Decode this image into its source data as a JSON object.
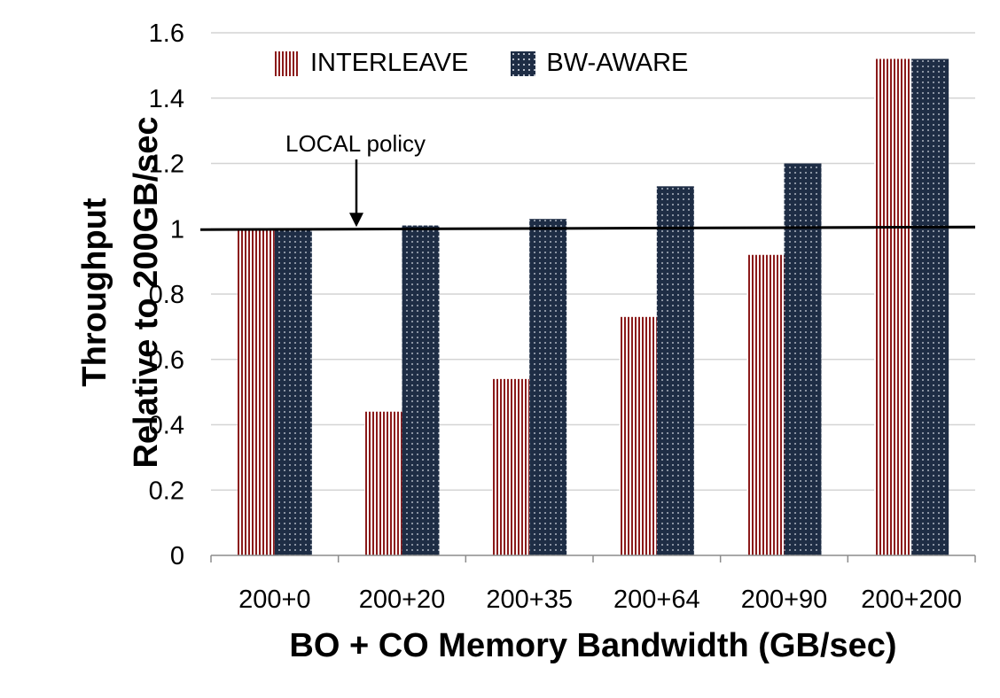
{
  "chart_data": {
    "type": "bar",
    "categories": [
      "200+0",
      "200+20",
      "200+35",
      "200+64",
      "200+90",
      "200+200"
    ],
    "series": [
      {
        "name": "INTERLEAVE",
        "values": [
          1.0,
          0.44,
          0.54,
          0.73,
          0.92,
          1.52
        ],
        "color": "#8b1a1a",
        "pattern": "vertical-stripes"
      },
      {
        "name": "BW-AWARE",
        "values": [
          1.0,
          1.01,
          1.03,
          1.13,
          1.2,
          1.52
        ],
        "color": "#1e2d45",
        "pattern": "dots"
      }
    ],
    "title": "",
    "xlabel": "BO + CO Memory Bandwidth (GB/sec)",
    "ylabel": [
      "Throughput",
      "Relative to 200GB/sec"
    ],
    "ylim": [
      0,
      1.6
    ],
    "yticks": [
      "0",
      "0.2",
      "0.4",
      "0.6",
      "0.8",
      "1",
      "1.2",
      "1.4",
      "1.6"
    ],
    "grid": "horizontal",
    "legend_position": "top",
    "reference_line": {
      "value": 1.0,
      "label": "LOCAL policy"
    }
  }
}
